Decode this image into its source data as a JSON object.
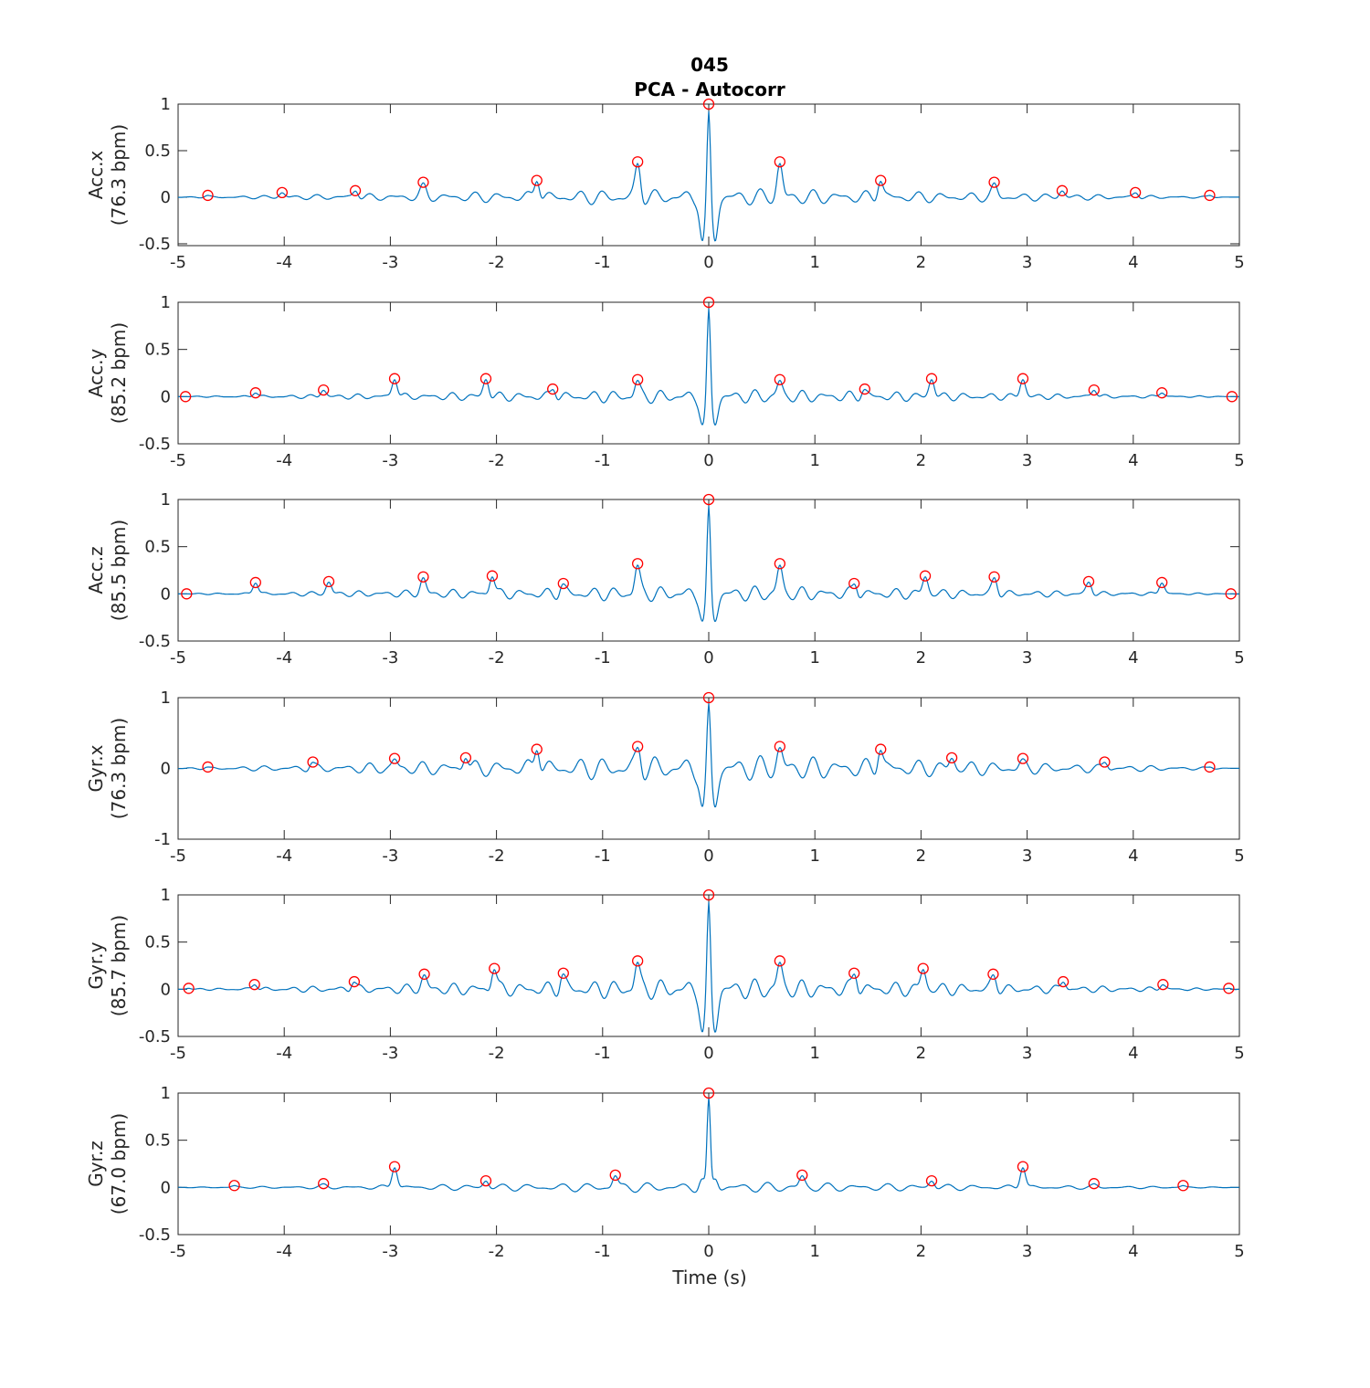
{
  "figure": {
    "title_line1": "045",
    "title_line2": "PCA - Autocorr",
    "xlabel": "Time (s)"
  },
  "colors": {
    "line": "#0072bd",
    "marker": "#ff0000",
    "axis": "#262626",
    "background": "#ffffff"
  },
  "chart_data": [
    {
      "type": "line",
      "ylabel_line1": "Acc.x",
      "ylabel_line2": "(76.3 bpm)",
      "xlim": [
        -5,
        5
      ],
      "ylim": [
        -0.52,
        1
      ],
      "xticks": [
        -5,
        -4,
        -3,
        -2,
        -1,
        0,
        1,
        2,
        3,
        4,
        5
      ],
      "yticks": [
        -0.5,
        0,
        0.5,
        1
      ],
      "ytick_labels": [
        "-0.5",
        "0",
        "0.5",
        "1"
      ],
      "period_s": 0.786,
      "main_lobe_min": -0.52,
      "oscillation_amplitude": 0.1,
      "peaks_x": [
        -4.72,
        -4.02,
        -3.33,
        -2.69,
        -1.62,
        -0.67,
        0,
        0.67,
        1.62,
        2.69,
        3.33,
        4.02,
        4.72
      ],
      "peaks_y": [
        0.02,
        0.05,
        0.07,
        0.16,
        0.18,
        0.38,
        1.0,
        0.38,
        0.18,
        0.16,
        0.07,
        0.05,
        0.02
      ]
    },
    {
      "type": "line",
      "ylabel_line1": "Acc.y",
      "ylabel_line2": "(85.2 bpm)",
      "xlim": [
        -5,
        5
      ],
      "ylim": [
        -0.5,
        1
      ],
      "xticks": [
        -5,
        -4,
        -3,
        -2,
        -1,
        0,
        1,
        2,
        3,
        4,
        5
      ],
      "yticks": [
        -0.5,
        0,
        0.5,
        1
      ],
      "ytick_labels": [
        "-0.5",
        "0",
        "0.5",
        "1"
      ],
      "period_s": 0.704,
      "main_lobe_min": -0.33,
      "oscillation_amplitude": 0.08,
      "peaks_x": [
        -4.93,
        -4.27,
        -3.63,
        -2.96,
        -2.1,
        -1.47,
        -0.67,
        0,
        0.67,
        1.47,
        2.1,
        2.96,
        3.63,
        4.27,
        4.93
      ],
      "peaks_y": [
        0.0,
        0.04,
        0.07,
        0.19,
        0.19,
        0.08,
        0.18,
        1.0,
        0.18,
        0.08,
        0.19,
        0.19,
        0.07,
        0.04,
        0.0
      ]
    },
    {
      "type": "line",
      "ylabel_line1": "Acc.z",
      "ylabel_line2": "(85.5 bpm)",
      "xlim": [
        -5,
        5
      ],
      "ylim": [
        -0.5,
        1
      ],
      "xticks": [
        -5,
        -4,
        -3,
        -2,
        -1,
        0,
        1,
        2,
        3,
        4,
        5
      ],
      "yticks": [
        -0.5,
        0,
        0.5,
        1
      ],
      "ytick_labels": [
        "-0.5",
        "0",
        "0.5",
        "1"
      ],
      "period_s": 0.702,
      "main_lobe_min": -0.32,
      "oscillation_amplitude": 0.09,
      "peaks_x": [
        -4.92,
        -4.27,
        -3.58,
        -2.69,
        -2.04,
        -1.37,
        -0.67,
        0,
        0.67,
        1.37,
        2.04,
        2.69,
        3.58,
        4.27,
        4.92
      ],
      "peaks_y": [
        0.0,
        0.12,
        0.13,
        0.18,
        0.19,
        0.11,
        0.32,
        1.0,
        0.32,
        0.11,
        0.19,
        0.18,
        0.13,
        0.12,
        0.0
      ]
    },
    {
      "type": "line",
      "ylabel_line1": "Gyr.x",
      "ylabel_line2": "(76.3 bpm)",
      "xlim": [
        -5,
        5
      ],
      "ylim": [
        -1,
        1
      ],
      "xticks": [
        -5,
        -4,
        -3,
        -2,
        -1,
        0,
        1,
        2,
        3,
        4,
        5
      ],
      "yticks": [
        -1,
        0,
        1
      ],
      "ytick_labels": [
        "-1",
        "0",
        "1"
      ],
      "period_s": 0.786,
      "main_lobe_min": -0.6,
      "oscillation_amplitude": 0.2,
      "peaks_x": [
        -4.72,
        -3.73,
        -2.96,
        -2.29,
        -1.62,
        -0.67,
        0,
        0.67,
        1.62,
        2.29,
        2.96,
        3.73,
        4.72
      ],
      "peaks_y": [
        0.02,
        0.09,
        0.14,
        0.15,
        0.27,
        0.31,
        1.0,
        0.31,
        0.27,
        0.15,
        0.14,
        0.09,
        0.02
      ]
    },
    {
      "type": "line",
      "ylabel_line1": "Gyr.y",
      "ylabel_line2": "(85.7 bpm)",
      "xlim": [
        -5,
        5
      ],
      "ylim": [
        -0.5,
        1
      ],
      "xticks": [
        -5,
        -4,
        -3,
        -2,
        -1,
        0,
        1,
        2,
        3,
        4,
        5
      ],
      "yticks": [
        -0.5,
        0,
        0.5,
        1
      ],
      "ytick_labels": [
        "-0.5",
        "0",
        "0.5",
        "1"
      ],
      "period_s": 0.7,
      "main_lobe_min": -0.5,
      "oscillation_amplitude": 0.12,
      "peaks_x": [
        -4.9,
        -4.28,
        -3.34,
        -2.68,
        -2.02,
        -1.37,
        -0.67,
        0,
        0.67,
        1.37,
        2.02,
        2.68,
        3.34,
        4.28,
        4.9
      ],
      "peaks_y": [
        0.01,
        0.05,
        0.08,
        0.16,
        0.22,
        0.17,
        0.3,
        1.0,
        0.3,
        0.17,
        0.22,
        0.16,
        0.08,
        0.05,
        0.01
      ]
    },
    {
      "type": "line",
      "ylabel_line1": "Gyr.z",
      "ylabel_line2": "(67.0 bpm)",
      "xlim": [
        -5,
        5
      ],
      "ylim": [
        -0.5,
        1
      ],
      "xticks": [
        -5,
        -4,
        -3,
        -2,
        -1,
        0,
        1,
        2,
        3,
        4,
        5
      ],
      "yticks": [
        -0.5,
        0,
        0.5,
        1
      ],
      "ytick_labels": [
        "-0.5",
        "0",
        "0.5",
        "1"
      ],
      "period_s": 0.896,
      "main_lobe_min": 0.1,
      "oscillation_amplitude": 0.06,
      "peaks_x": [
        -4.47,
        -3.63,
        -2.96,
        -2.1,
        -0.88,
        0,
        0.88,
        2.1,
        2.96,
        3.63,
        4.47
      ],
      "peaks_y": [
        0.02,
        0.04,
        0.22,
        0.07,
        0.13,
        1.0,
        0.13,
        0.07,
        0.22,
        0.04,
        0.02
      ]
    }
  ]
}
